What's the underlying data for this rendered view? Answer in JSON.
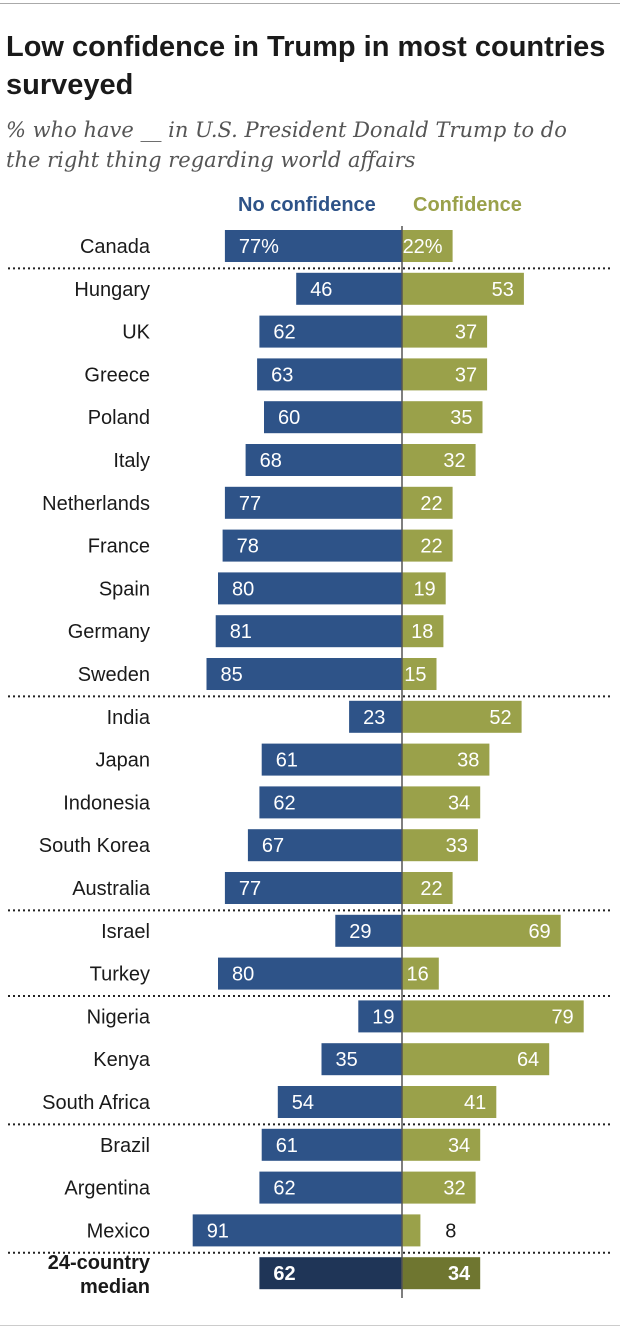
{
  "title": "Low confidence in Trump in most countries surveyed",
  "subtitle": "% who have __ in U.S. President Donald Trump to do the right thing regarding world affairs",
  "colors": {
    "no_confidence": "#2e5388",
    "confidence": "#9aa14a",
    "median_no": "#1f3557",
    "median_yes": "#6f7630"
  },
  "chart_data": {
    "type": "bar",
    "orientation": "horizontal-diverging",
    "title": "Low confidence in Trump in most countries surveyed",
    "subtitle": "% who have __ in U.S. President Donald Trump to do the right thing regarding world affairs",
    "legend": [
      "No confidence",
      "Confidence"
    ],
    "categories": [
      "Canada",
      "Hungary",
      "UK",
      "Greece",
      "Poland",
      "Italy",
      "Netherlands",
      "France",
      "Spain",
      "Germany",
      "Sweden",
      "India",
      "Japan",
      "Indonesia",
      "South Korea",
      "Australia",
      "Israel",
      "Turkey",
      "Nigeria",
      "Kenya",
      "South Africa",
      "Brazil",
      "Argentina",
      "Mexico",
      "24-country median"
    ],
    "series": [
      {
        "name": "No confidence",
        "values": [
          77,
          46,
          62,
          63,
          60,
          68,
          77,
          78,
          80,
          81,
          85,
          23,
          61,
          62,
          67,
          77,
          29,
          80,
          19,
          35,
          54,
          61,
          62,
          91,
          62
        ]
      },
      {
        "name": "Confidence",
        "values": [
          22,
          53,
          37,
          37,
          35,
          32,
          22,
          22,
          19,
          18,
          15,
          52,
          38,
          34,
          33,
          22,
          69,
          16,
          79,
          64,
          41,
          34,
          32,
          8,
          34
        ]
      }
    ],
    "value_labels": {
      "no": [
        "77%",
        "46",
        "62",
        "63",
        "60",
        "68",
        "77",
        "78",
        "80",
        "81",
        "85",
        "23",
        "61",
        "62",
        "67",
        "77",
        "29",
        "80",
        "19",
        "35",
        "54",
        "61",
        "62",
        "91",
        "62"
      ],
      "yes": [
        "22%",
        "53",
        "37",
        "37",
        "35",
        "32",
        "22",
        "22",
        "19",
        "18",
        "15",
        "52",
        "38",
        "34",
        "33",
        "22",
        "69",
        "16",
        "79",
        "64",
        "41",
        "34",
        "32",
        "8",
        "34"
      ]
    },
    "category_lines": [
      "Canada",
      "Hungary",
      "UK",
      "Greece",
      "Poland",
      "Italy",
      "Netherlands",
      "France",
      "Spain",
      "Germany",
      "Sweden",
      "India",
      "Japan",
      "Indonesia",
      "South Korea",
      "Australia",
      "Israel",
      "Turkey",
      "Nigeria",
      "Kenya",
      "South Africa",
      "Brazil",
      "Argentina",
      "Mexico",
      [
        "24-country",
        "median"
      ]
    ],
    "group_separators_after": [
      "Canada",
      "Sweden",
      "Australia",
      "Turkey",
      "South Africa",
      "Mexico"
    ],
    "highlight_category": "24-country median"
  }
}
